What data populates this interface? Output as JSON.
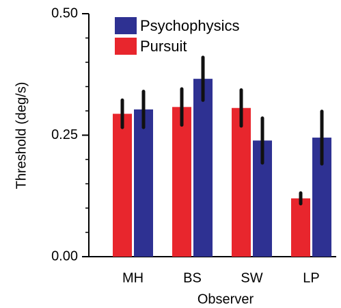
{
  "chart_data": {
    "type": "bar",
    "y_label": "Threshold (deg/s)",
    "x_label": "Observer",
    "categories": [
      "MH",
      "BS",
      "SW",
      "LP"
    ],
    "series": [
      {
        "name": "Pursuit",
        "color": "#e8262d",
        "values": [
          0.294,
          0.308,
          0.306,
          0.12
        ],
        "errors": [
          0.028,
          0.037,
          0.037,
          0.011
        ]
      },
      {
        "name": "Psychophysics",
        "color": "#2e3192",
        "values": [
          0.303,
          0.366,
          0.239,
          0.245
        ],
        "errors": [
          0.037,
          0.044,
          0.046,
          0.054
        ]
      }
    ],
    "ylim": [
      0,
      0.5
    ],
    "yticks": [
      {
        "value": 0,
        "label": "0.00"
      },
      {
        "value": 0.25,
        "label": "0.25"
      },
      {
        "value": 0.5,
        "label": "0.50"
      }
    ],
    "minor_yticks": [
      0.05,
      0.1,
      0.15,
      0.2,
      0.3,
      0.35,
      0.4,
      0.45
    ],
    "grid": false
  }
}
